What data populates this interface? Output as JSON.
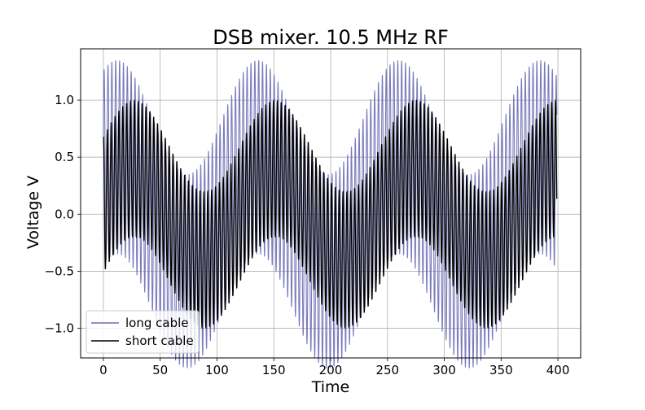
{
  "chart_data": {
    "type": "line",
    "title": "DSB mixer. 10.5 MHz RF",
    "xlabel": "Time",
    "ylabel": "Voltage V",
    "xlim": [
      -20,
      420
    ],
    "ylim": [
      -1.26,
      1.45
    ],
    "xticks": [
      0,
      50,
      100,
      150,
      200,
      250,
      300,
      350,
      400
    ],
    "xtick_labels": [
      "0",
      "50",
      "100",
      "150",
      "200",
      "250",
      "300",
      "350",
      "400"
    ],
    "yticks": [
      -1.0,
      -0.5,
      0.0,
      0.5,
      1.0
    ],
    "ytick_labels": [
      "−1.0",
      "−0.5",
      "0.0",
      "0.5",
      "1.0"
    ],
    "grid": true,
    "legend_position": "lower-left",
    "x_range": [
      0,
      399
    ],
    "series": [
      {
        "name": "long cable",
        "color": "#6b6bb5",
        "carrier_amplitude": 0.85,
        "carrier_period": 3.4,
        "envelope_amplitude": 0.5,
        "envelope_period": 124,
        "envelope_peaks_at": [
          12,
          136,
          260,
          384
        ]
      },
      {
        "name": "short cable",
        "color": "#000000",
        "carrier_amplitude": 0.6,
        "carrier_period": 3.4,
        "envelope_amplitude": 0.4,
        "envelope_period": 124,
        "envelope_peaks_at": [
          27,
          151,
          275,
          399
        ]
      }
    ]
  }
}
